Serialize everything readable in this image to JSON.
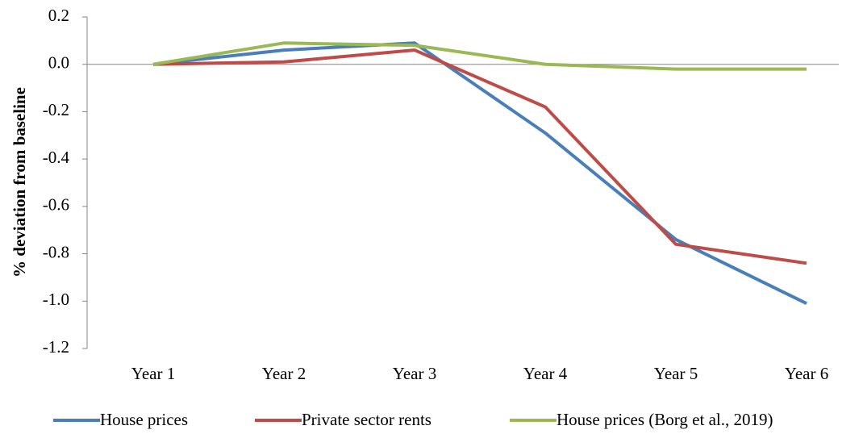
{
  "chart_data": {
    "type": "line",
    "y_label": "% deviation from baseline",
    "categories": [
      "Year 1",
      "Year 2",
      "Year 3",
      "Year 4",
      "Year 5",
      "Year 6"
    ],
    "series": [
      {
        "name": "House prices",
        "color": "#4a7ebb",
        "values": [
          0,
          0.06,
          0.09,
          -0.29,
          -0.74,
          -1.01
        ]
      },
      {
        "name": "Private sector rents",
        "color": "#be4b48",
        "values": [
          0,
          0.01,
          0.06,
          -0.18,
          -0.76,
          -0.84
        ]
      },
      {
        "name": "House prices (Borg et al., 2019)",
        "color": "#98b954",
        "values": [
          0,
          0.09,
          0.08,
          0,
          -0.02,
          -0.02
        ]
      }
    ],
    "ylim": [
      -1.2,
      0.2
    ],
    "yticks": [
      0.2,
      {
        "value": 0,
        "label": "0.0"
      },
      -0.2,
      -0.4,
      -0.6,
      -0.8,
      {
        "value": -1,
        "label": "-1.0"
      },
      -1.2
    ],
    "legend": "bottom"
  }
}
